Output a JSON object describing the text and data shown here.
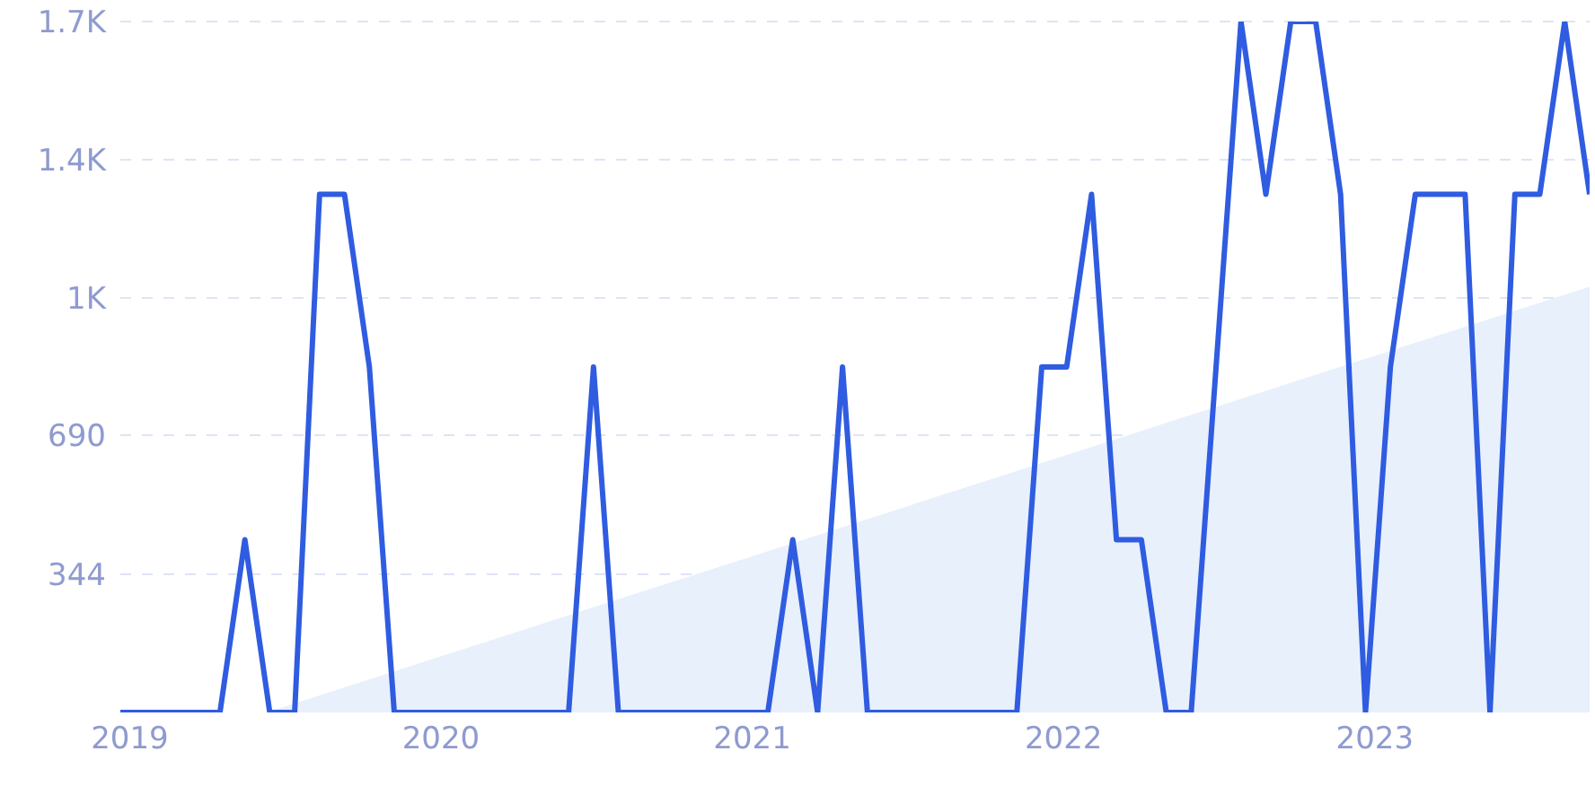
{
  "chart_data": {
    "type": "line",
    "xlim": [
      2018.97,
      2023.69
    ],
    "xticks": [
      2019,
      2020,
      2021,
      2022,
      2023
    ],
    "ylim": [
      0,
      1720
    ],
    "yticks": [
      344,
      690,
      {
        "value": 1032,
        "label": "1K"
      },
      {
        "value": 1376,
        "label": "1.4K"
      },
      {
        "value": 1720,
        "label": "1.7K"
      }
    ],
    "grid": "y",
    "marker": "none",
    "line_style": "solid",
    "series": [
      {
        "type": "area",
        "color": "#e8f0fc",
        "x": [
          2019.44,
          2023.69
        ],
        "values": [
          0,
          1060
        ]
      },
      {
        "type": "line",
        "color": "#2f5ce0",
        "x": [
          2018.97,
          2019.05,
          2019.13,
          2019.21,
          2019.29,
          2019.37,
          2019.45,
          2019.53,
          2019.61,
          2019.69,
          2019.77,
          2019.85,
          2019.93,
          2020.01,
          2020.09,
          2020.17,
          2020.25,
          2020.33,
          2020.41,
          2020.49,
          2020.57,
          2020.65,
          2020.73,
          2020.81,
          2020.89,
          2020.97,
          2021.05,
          2021.13,
          2021.21,
          2021.29,
          2021.37,
          2021.45,
          2021.53,
          2021.61,
          2021.69,
          2021.77,
          2021.85,
          2021.93,
          2022.01,
          2022.09,
          2022.17,
          2022.25,
          2022.33,
          2022.41,
          2022.49,
          2022.57,
          2022.65,
          2022.73,
          2022.81,
          2022.89,
          2022.97,
          2023.05,
          2023.13,
          2023.21,
          2023.29,
          2023.37,
          2023.45,
          2023.53,
          2023.61,
          2023.69
        ],
        "values": [
          0,
          0,
          0,
          0,
          0,
          430,
          0,
          0,
          1290,
          1290,
          860,
          0,
          0,
          0,
          0,
          0,
          0,
          0,
          0,
          860,
          0,
          0,
          0,
          0,
          0,
          0,
          0,
          430,
          0,
          860,
          0,
          0,
          0,
          0,
          0,
          0,
          0,
          860,
          860,
          1290,
          430,
          430,
          0,
          0,
          860,
          1720,
          1290,
          1720,
          1720,
          1290,
          0,
          860,
          1290,
          1290,
          1290,
          0,
          1290,
          1290,
          1720,
          1290
        ]
      }
    ]
  }
}
